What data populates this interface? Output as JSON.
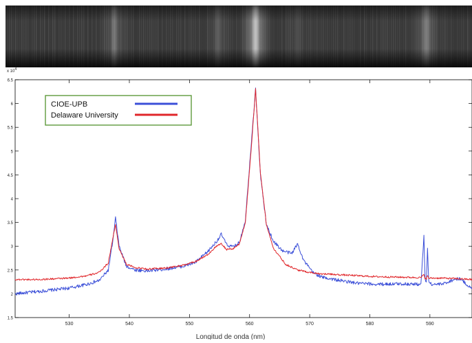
{
  "chart_data": {
    "type": "line",
    "title": "",
    "xlabel": "Longitud de onda (nm)",
    "ylabel": "",
    "y_multiplier_label": "x 10",
    "y_multiplier_exponent": "4",
    "xlim": [
      521,
      597
    ],
    "ylim": [
      1.5,
      6.5
    ],
    "x_ticks": [
      530,
      540,
      550,
      560,
      570,
      580,
      590
    ],
    "y_ticks": [
      1.5,
      2,
      2.5,
      3,
      3.5,
      4,
      4.5,
      5,
      5.5,
      6,
      6.5
    ],
    "x_tick_labels": [
      "530",
      "540",
      "550",
      "560",
      "570",
      "580",
      "590"
    ],
    "y_tick_labels": [
      "1.5",
      "2",
      "2.5",
      "3",
      "3.5",
      "4",
      "4.5",
      "5",
      "5.5",
      "6",
      "6.5"
    ],
    "legend_position": "top-left",
    "grid": false,
    "series": [
      {
        "name": "CIOE-UPB",
        "color": "#3b4fd8",
        "x": [
          521,
          525,
          530,
          533,
          535,
          536.5,
          537.3,
          537.7,
          538.3,
          539.5,
          541,
          543,
          546,
          549,
          551,
          553,
          554.5,
          555.3,
          556.2,
          557.3,
          558.3,
          559.3,
          560.3,
          561.0,
          561.8,
          562.8,
          564,
          565.5,
          567,
          568,
          569,
          570.5,
          572,
          575,
          578,
          581,
          585,
          588.5,
          589.0,
          589.2,
          589.4,
          589.6,
          589.8,
          590.0,
          590.3,
          592,
          594,
          595,
          597
        ],
        "y": [
          2.0,
          2.05,
          2.12,
          2.2,
          2.28,
          2.5,
          3.15,
          3.6,
          3.0,
          2.58,
          2.5,
          2.48,
          2.52,
          2.58,
          2.66,
          2.88,
          3.1,
          3.25,
          3.03,
          2.98,
          3.08,
          3.55,
          5.2,
          6.3,
          4.5,
          3.45,
          3.1,
          2.9,
          2.85,
          3.05,
          2.7,
          2.45,
          2.35,
          2.28,
          2.22,
          2.2,
          2.21,
          2.2,
          3.2,
          2.3,
          2.25,
          2.95,
          2.3,
          2.22,
          2.2,
          2.2,
          2.3,
          2.32,
          2.1
        ]
      },
      {
        "name": "Delaware University",
        "color": "#e0262a",
        "x": [
          521,
          525,
          530,
          533,
          535,
          536.5,
          537.3,
          537.7,
          538.3,
          539.5,
          541,
          543,
          546,
          549,
          551,
          553,
          554.5,
          555.3,
          556.2,
          557.3,
          558.3,
          559.3,
          560.3,
          561.0,
          561.8,
          562.8,
          564,
          566,
          568,
          570,
          572,
          575,
          578,
          581,
          585,
          588.5,
          589.0,
          589.2,
          589.4,
          589.6,
          589.8,
          590.0,
          590.3,
          592,
          594,
          597
        ],
        "y": [
          2.3,
          2.3,
          2.33,
          2.38,
          2.45,
          2.65,
          3.2,
          3.45,
          2.95,
          2.62,
          2.55,
          2.52,
          2.54,
          2.6,
          2.68,
          2.82,
          3.0,
          3.05,
          2.93,
          2.95,
          3.05,
          3.5,
          5.1,
          6.3,
          4.55,
          3.45,
          2.95,
          2.62,
          2.5,
          2.45,
          2.42,
          2.4,
          2.38,
          2.36,
          2.35,
          2.34,
          2.4,
          2.33,
          2.32,
          2.38,
          2.32,
          2.33,
          2.33,
          2.33,
          2.32,
          2.3
        ]
      }
    ]
  },
  "spectrum_strip": {
    "bright_lines_nm": [
      537.5,
      561,
      554.8,
      589.2,
      589.6,
      568
    ],
    "line_intensity": [
      0.35,
      1.0,
      0.2,
      0.25,
      0.22,
      0.12
    ]
  }
}
